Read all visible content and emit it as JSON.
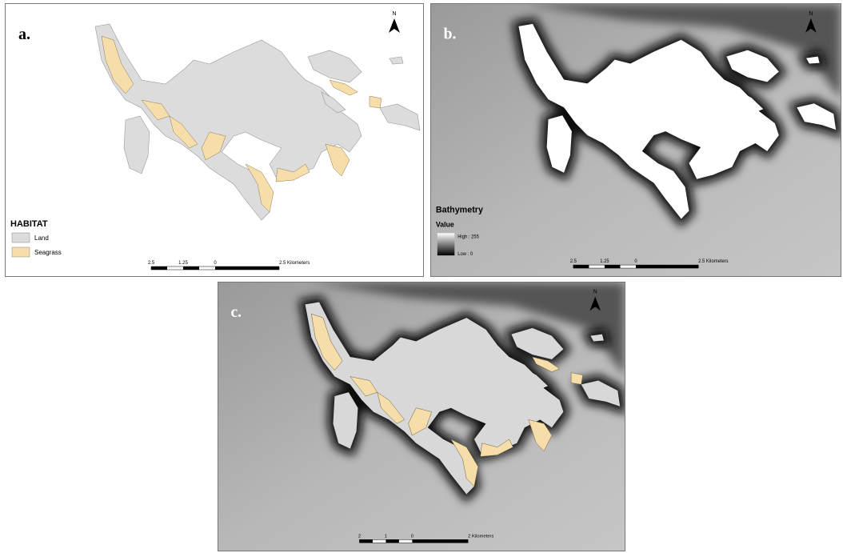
{
  "panels": [
    {
      "label": "a.",
      "north": "N",
      "legend": {
        "title": "HABITAT",
        "items": [
          "Land",
          "Seagrass"
        ]
      },
      "scale": [
        "2.5",
        "1.25",
        "0",
        "2.5 Kilometers"
      ]
    },
    {
      "label": "b.",
      "north": "N",
      "legend": {
        "title": "Bathymetry",
        "subtitle": "Value",
        "high": "High : 255",
        "low": "Low : 0"
      },
      "scale": [
        "2.5",
        "1.25",
        "0",
        "2.5 Kilometers"
      ]
    },
    {
      "label": "c.",
      "north": "N",
      "scale": [
        "2",
        "1",
        "0",
        "2 Kilometers"
      ]
    }
  ]
}
